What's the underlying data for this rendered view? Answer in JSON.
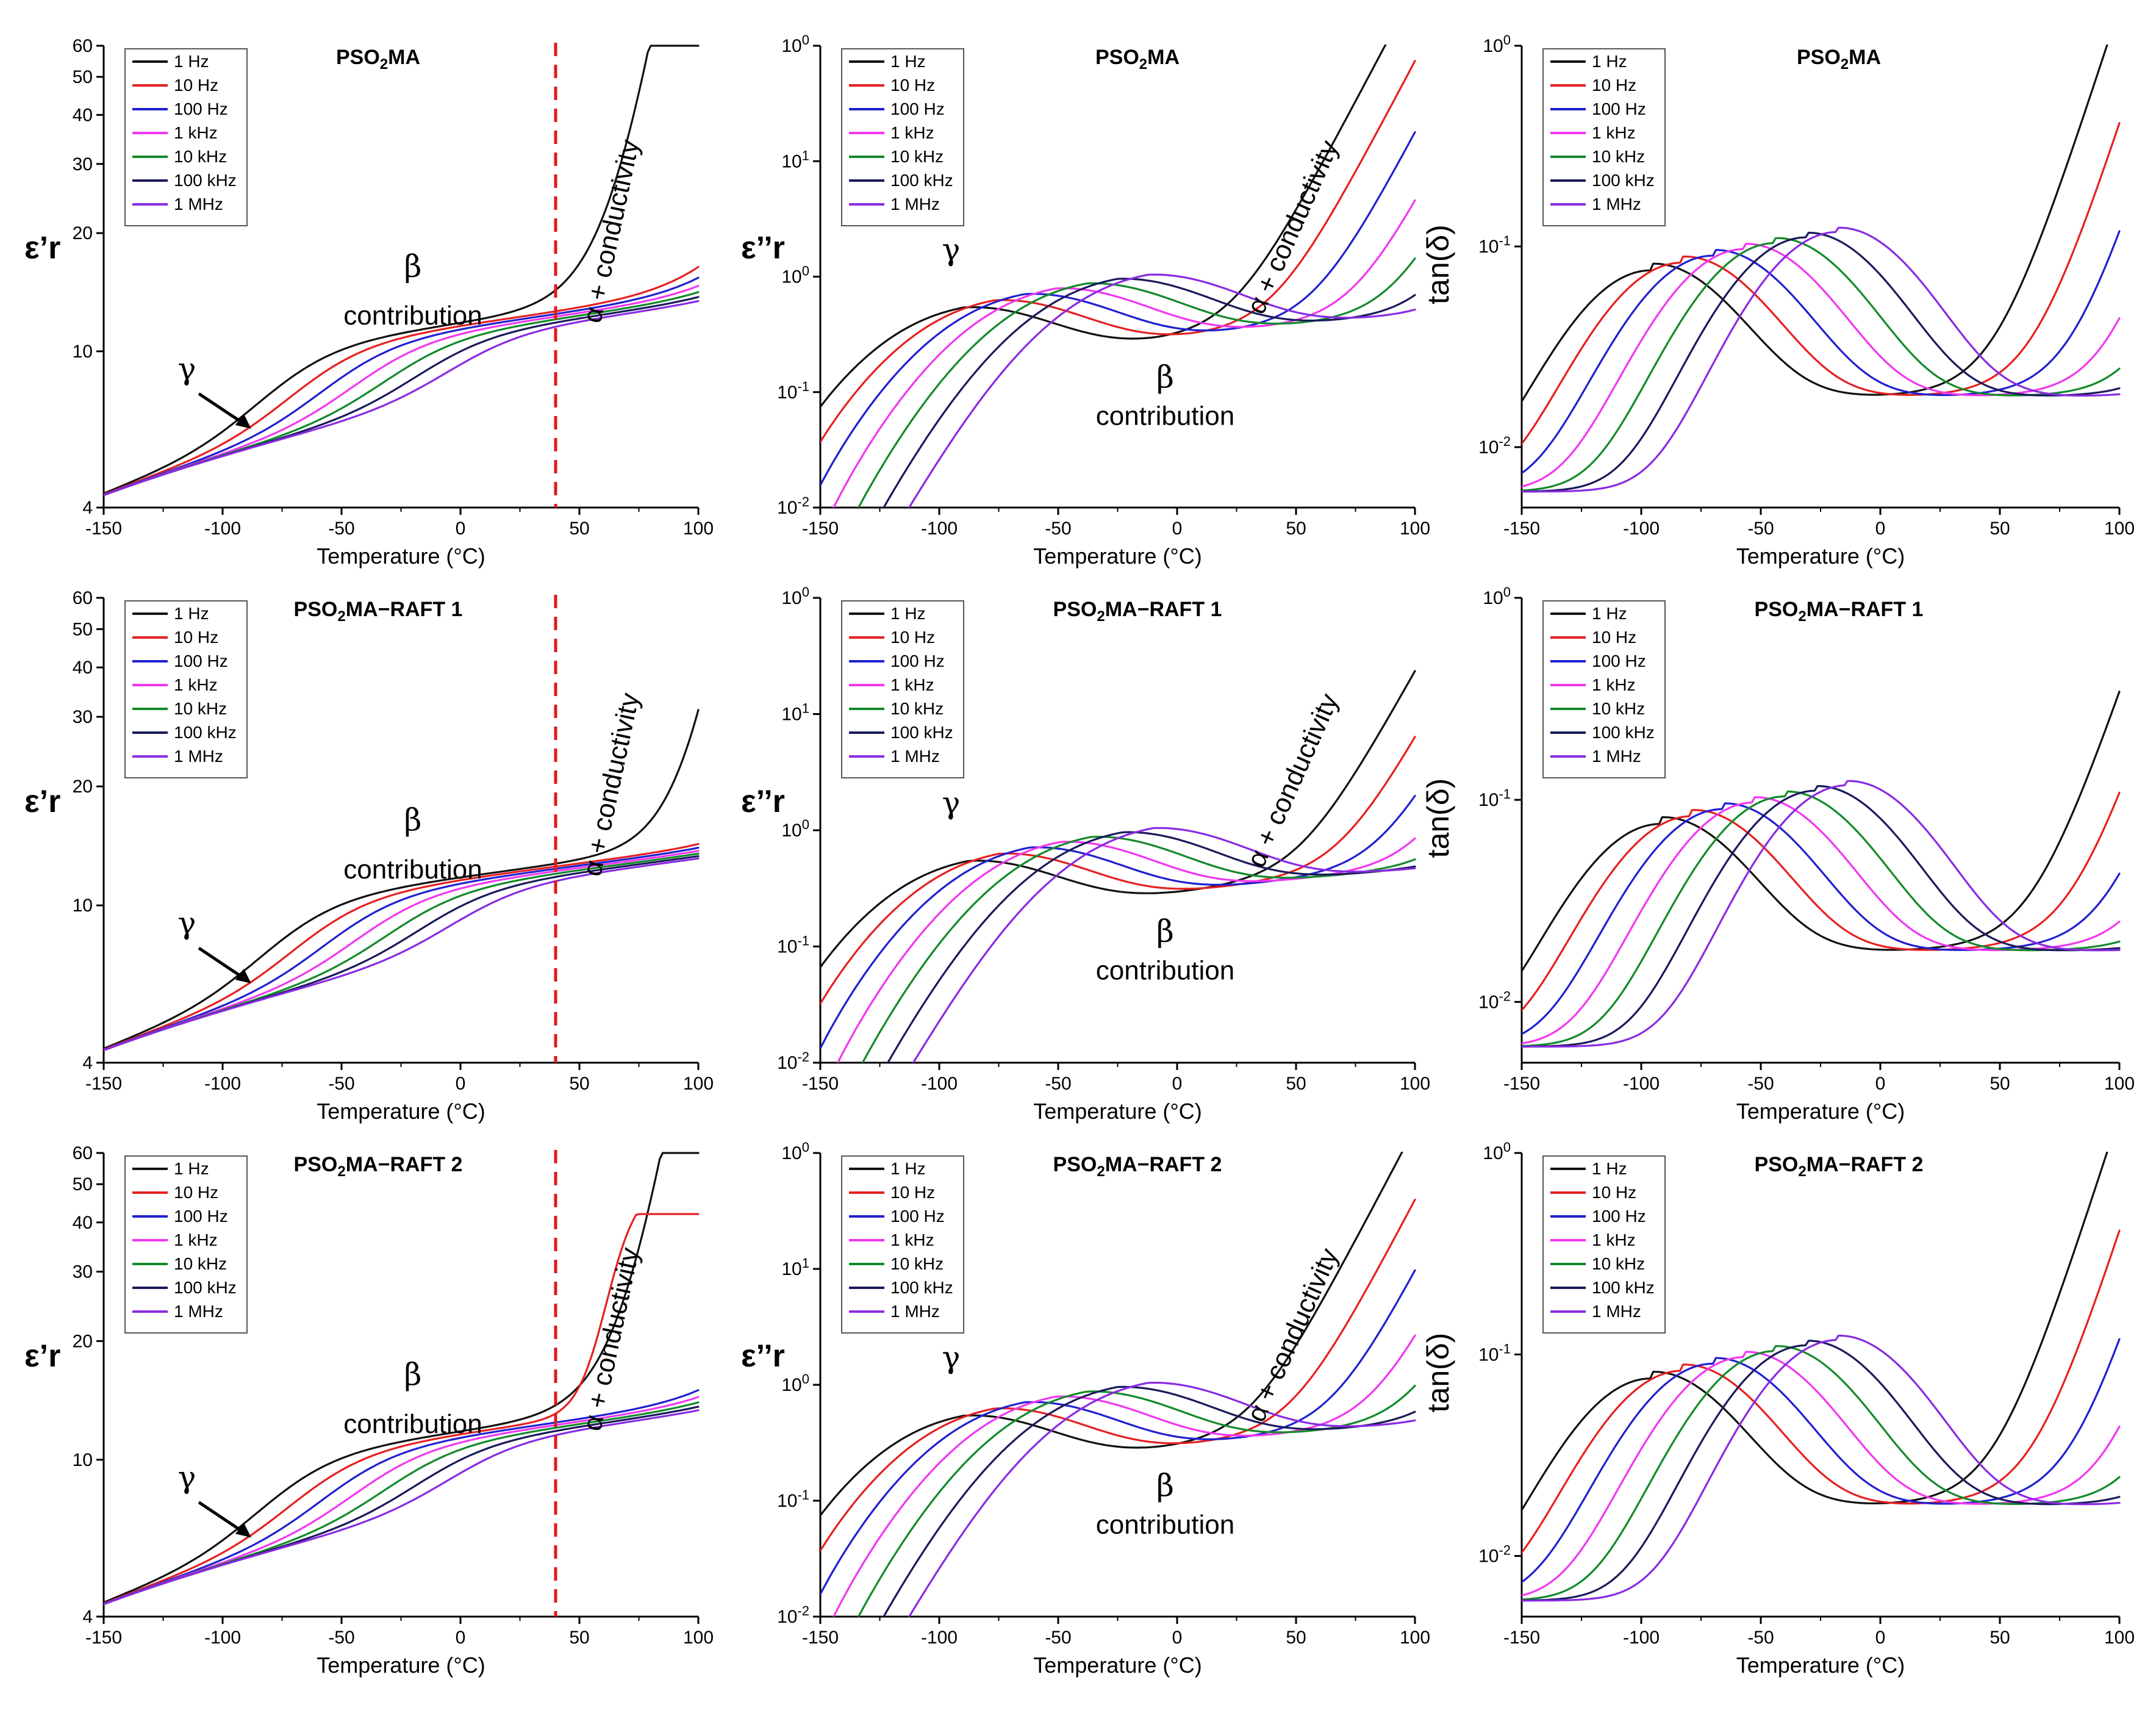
{
  "figure": {
    "tg_marker": {
      "temperature_C": 40,
      "color": "#e0191b",
      "style": "dashed"
    }
  },
  "series_colors": [
    "#111111",
    "#e62020",
    "#2020d0",
    "#f038f0",
    "#138a2a",
    "#1a1a5c",
    "#8a2be2"
  ],
  "frequencies": [
    "1 Hz",
    "10 Hz",
    "100 Hz",
    "1 kHz",
    "10 kHz",
    "100 kHz",
    "1 MHz"
  ],
  "chart_data": [
    {
      "id": "eps-prime-PSO2MA",
      "type": "line",
      "quantity": "eps_prime",
      "row": 0,
      "col": 0,
      "title_base": "PSO",
      "title_sub": "2",
      "title_rest": "MA",
      "xlabel": "Temperature (°C)",
      "ylabel": "ε’r",
      "xlim": [
        -150,
        100
      ],
      "ylim": [
        4,
        60
      ],
      "yscale": "log",
      "xticks": [
        "-150",
        "-100",
        "-50",
        "0",
        "50",
        "100"
      ],
      "yticks": [
        "4",
        "10",
        "20",
        "30",
        "40",
        "50",
        "60"
      ],
      "params": {
        "gammaPeak": -93,
        "abruptAt": 20,
        "steep": 0.085,
        "cap": 60
      },
      "annotations": {
        "alpha": "α + conductivity",
        "beta1": "β",
        "beta2": "contribution",
        "gamma": "γ"
      }
    },
    {
      "id": "eps-double-PSO2MA",
      "type": "line",
      "quantity": "eps_double",
      "row": 0,
      "col": 1,
      "title_base": "PSO",
      "title_sub": "2",
      "title_rest": "MA",
      "xlabel": "Temperature (°C)",
      "ylabel": "ε’’r",
      "xlim": [
        -150,
        100
      ],
      "ylim": [
        0.01,
        100
      ],
      "yscale": "log",
      "xticks": [
        "-150",
        "-100",
        "-50",
        "0",
        "50",
        "100"
      ],
      "yticks": [
        "10-2",
        "10-1",
        "100",
        "101",
        "100"
      ],
      "params": {
        "gammaPeak": -90,
        "abruptAt": 5,
        "steep": 0.09
      },
      "annotations": {
        "alpha": "α + conductivity",
        "beta1": "β",
        "beta2": "contribution",
        "gamma": "γ"
      }
    },
    {
      "id": "tan-PSO2MA",
      "type": "line",
      "quantity": "tan_delta",
      "row": 0,
      "col": 2,
      "title_base": "PSO",
      "title_sub": "2",
      "title_rest": "MA",
      "xlabel": "Temperature (°C)",
      "ylabel": "tan(δ)",
      "xlim": [
        -150,
        100
      ],
      "ylim": [
        0.005,
        1
      ],
      "yscale": "log",
      "xticks": [
        "-150",
        "-100",
        "-50",
        "0",
        "50",
        "100"
      ],
      "yticks": [
        "10-2",
        "10-1",
        "100"
      ],
      "params": {
        "gammaPeak": -96,
        "abruptAt": 30,
        "steep": 0.085
      }
    },
    {
      "id": "eps-prime-RAFT1",
      "type": "line",
      "quantity": "eps_prime",
      "row": 1,
      "col": 0,
      "title_base": "PSO",
      "title_sub": "2",
      "title_rest": "MA−RAFT 1",
      "xlabel": "Temperature (°C)",
      "ylabel": "ε’r",
      "xlim": [
        -150,
        100
      ],
      "ylim": [
        4,
        60
      ],
      "yscale": "log",
      "xticks": [
        "-150",
        "-100",
        "-50",
        "0",
        "50",
        "100"
      ],
      "yticks": [
        "4",
        "10",
        "20",
        "30",
        "40",
        "50",
        "60"
      ],
      "params": {
        "gammaPeak": -92,
        "abruptAt": 55,
        "steep": 0.09,
        "cap": 60
      },
      "annotations": {
        "alpha": "α + conductivity",
        "beta1": "β",
        "beta2": "contribution",
        "gamma": "γ"
      }
    },
    {
      "id": "eps-double-RAFT1",
      "type": "line",
      "quantity": "eps_double",
      "row": 1,
      "col": 1,
      "title_base": "PSO",
      "title_sub": "2",
      "title_rest": "MA−RAFT 1",
      "xlabel": "Temperature (°C)",
      "ylabel": "ε’’r",
      "xlim": [
        -150,
        100
      ],
      "ylim": [
        0.01,
        100
      ],
      "yscale": "log",
      "xticks": [
        "-150",
        "-100",
        "-50",
        "0",
        "50",
        "100"
      ],
      "yticks": [
        "10-2",
        "10-1",
        "100",
        "101",
        "100"
      ],
      "params": {
        "gammaPeak": -88,
        "abruptAt": 30,
        "steep": 0.085
      },
      "annotations": {
        "alpha": "α + conductivity",
        "beta1": "β",
        "beta2": "contribution",
        "gamma": "γ"
      }
    },
    {
      "id": "tan-RAFT1",
      "type": "line",
      "quantity": "tan_delta",
      "row": 1,
      "col": 2,
      "title_base": "PSO",
      "title_sub": "2",
      "title_rest": "MA−RAFT 1",
      "xlabel": "Temperature (°C)",
      "ylabel": "tan(δ)",
      "xlim": [
        -150,
        100
      ],
      "ylim": [
        0.005,
        1
      ],
      "yscale": "log",
      "xticks": [
        "-150",
        "-100",
        "-50",
        "0",
        "50",
        "100"
      ],
      "yticks": [
        "10-2",
        "10-1",
        "100"
      ],
      "params": {
        "gammaPeak": -92,
        "abruptAt": 45,
        "steep": 0.08
      }
    },
    {
      "id": "eps-prime-RAFT2",
      "type": "line",
      "quantity": "eps_prime",
      "row": 2,
      "col": 0,
      "title_base": "PSO",
      "title_sub": "2",
      "title_rest": "MA−RAFT 2",
      "xlabel": "Temperature (°C)",
      "ylabel": "ε’r",
      "xlim": [
        -150,
        100
      ],
      "ylim": [
        4,
        60
      ],
      "yscale": "log",
      "xticks": [
        "-150",
        "-100",
        "-50",
        "0",
        "50",
        "100"
      ],
      "yticks": [
        "4",
        "10",
        "20",
        "30",
        "40",
        "50",
        "60"
      ],
      "params": {
        "gammaPeak": -93,
        "abruptAt": 25,
        "steep": 0.085,
        "cap": 60,
        "cap10Hz": 42
      },
      "annotations": {
        "alpha": "α + conductivity",
        "beta1": "β",
        "beta2": "contribution",
        "gamma": "γ"
      }
    },
    {
      "id": "eps-double-RAFT2",
      "type": "line",
      "quantity": "eps_double",
      "row": 2,
      "col": 1,
      "title_base": "PSO",
      "title_sub": "2",
      "title_rest": "MA−RAFT 2",
      "xlabel": "Temperature (°C)",
      "ylabel": "ε’’r",
      "xlim": [
        -150,
        100
      ],
      "ylim": [
        0.01,
        100
      ],
      "yscale": "log",
      "xticks": [
        "-150",
        "-100",
        "-50",
        "0",
        "50",
        "100"
      ],
      "yticks": [
        "10-2",
        "10-1",
        "100",
        "101",
        "100"
      ],
      "params": {
        "gammaPeak": -90,
        "abruptAt": 12,
        "steep": 0.09
      },
      "annotations": {
        "alpha": "α + conductivity",
        "beta1": "β",
        "beta2": "contribution",
        "gamma": "γ"
      }
    },
    {
      "id": "tan-RAFT2",
      "type": "line",
      "quantity": "tan_delta",
      "row": 2,
      "col": 2,
      "title_base": "PSO",
      "title_sub": "2",
      "title_rest": "MA−RAFT 2",
      "xlabel": "Temperature (°C)",
      "ylabel": "tan(δ)",
      "xlim": [
        -150,
        100
      ],
      "ylim": [
        0.005,
        1
      ],
      "yscale": "log",
      "xticks": [
        "-150",
        "-100",
        "-50",
        "0",
        "50",
        "100"
      ],
      "yticks": [
        "10-2",
        "10-1",
        "100"
      ],
      "params": {
        "gammaPeak": -96,
        "abruptAt": 30,
        "steep": 0.085
      }
    }
  ]
}
